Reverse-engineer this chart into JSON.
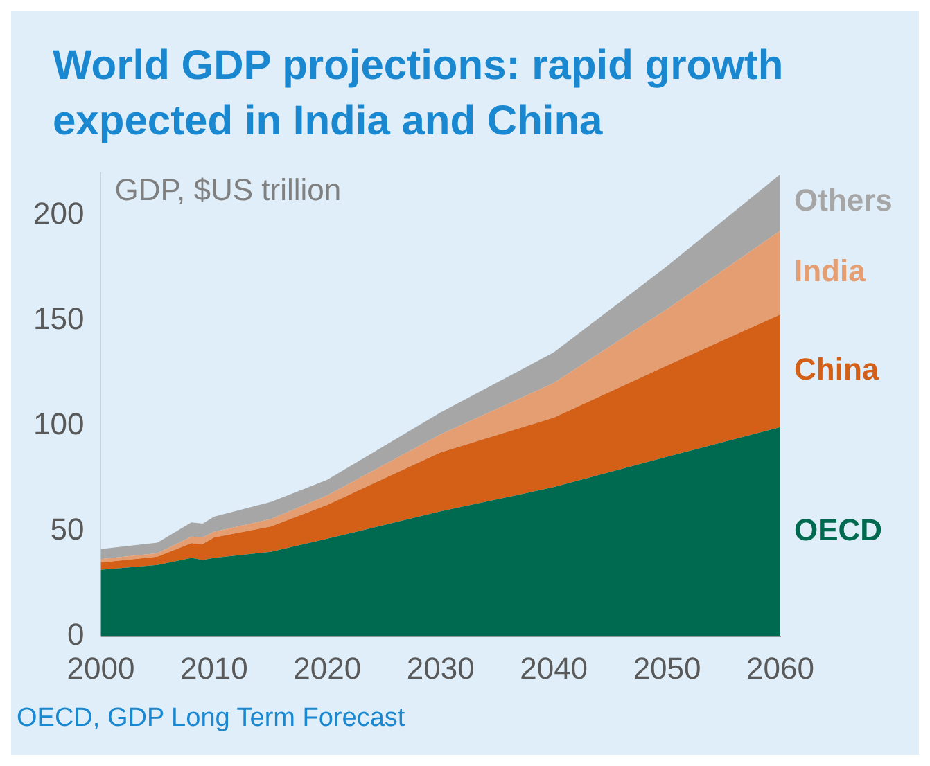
{
  "chart_data": {
    "type": "area",
    "title": "World GDP projections: rapid growth expected in India and China",
    "ylabel": "GDP, $US trillion",
    "annotations": [
      "OECD, GDP Long Term Forecast"
    ],
    "x": [
      2000,
      2005,
      2008,
      2009,
      2010,
      2015,
      2020,
      2030,
      2040,
      2050,
      2060
    ],
    "stacked": true,
    "xlim": [
      2000,
      2060
    ],
    "xticks": [
      2000,
      2010,
      2020,
      2030,
      2040,
      2050,
      2060
    ],
    "ylim": [
      0,
      220
    ],
    "yticks": [
      0,
      50,
      100,
      150,
      200
    ],
    "series": [
      {
        "name": "OECD",
        "color": "#006a50",
        "values": [
          31.7,
          34,
          37.4,
          36.4,
          37.4,
          40.3,
          46.5,
          59.5,
          71,
          85.4,
          99.5
        ]
      },
      {
        "name": "China",
        "color": "#d45f16",
        "values": [
          3.5,
          4,
          7,
          7.6,
          9.7,
          12,
          16.1,
          28,
          33,
          43.4,
          53.5
        ]
      },
      {
        "name": "India",
        "color": "#e49e72",
        "values": [
          1.6,
          1.6,
          3.1,
          3.1,
          2.7,
          3.5,
          4.5,
          8.5,
          16.5,
          26.8,
          39.8
        ]
      },
      {
        "name": "Others",
        "color": "#a6a6a6",
        "values": [
          4.8,
          5,
          6.8,
          6.6,
          7.2,
          8.2,
          7.4,
          10.5,
          14.5,
          20.4,
          26.8
        ]
      }
    ]
  }
}
